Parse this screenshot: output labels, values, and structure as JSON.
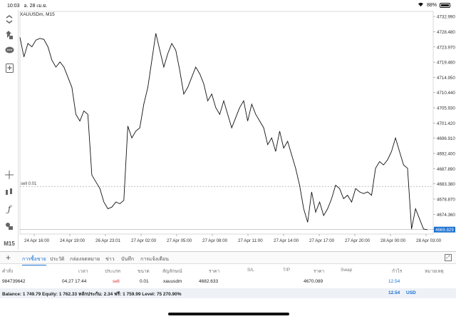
{
  "status": {
    "time": "10:03",
    "date": "อ. 28 เม.ย.",
    "battery": "88%"
  },
  "toolbar": {
    "bottom_label": "M15"
  },
  "symbol": {
    "label": "XAUUSDm, M15"
  },
  "chart_data": {
    "type": "line",
    "title": "XAUUSDm, M15",
    "x_tick_labels": [
      "24 Apr 16:00",
      "24 Apr 19:00",
      "26 Apr 23:01",
      "27 Apr 02:00",
      "27 Apr 05:00",
      "27 Apr 08:00",
      "27 Apr 11:00",
      "27 Apr 14:00",
      "27 Apr 17:00",
      "27 Apr 20:00",
      "28 Apr 00:00",
      "28 Apr 03:00"
    ],
    "y_tick_labels": [
      "4732.990",
      "4728.480",
      "4723.970",
      "4719.460",
      "4714.950",
      "4710.440",
      "4705.930",
      "4701.420",
      "4696.910",
      "4692.400",
      "4687.890",
      "4683.380",
      "4678.870",
      "4674.360",
      "4669.850"
    ],
    "ylim": [
      4668.5,
      4734.5
    ],
    "current_price": "4669.829",
    "sell_line": {
      "label": "sell 0.01",
      "price": 4682.633
    },
    "line_color": "#111111",
    "values": [
      4726.8,
      4721.0,
      4725.0,
      4724.0,
      4726.0,
      4726.5,
      4726.2,
      4724.0,
      4720.0,
      4718.0,
      4719.5,
      4718.0,
      4715.0,
      4712.0,
      4704.0,
      4702.0,
      4705.0,
      4704.0,
      4686.0,
      4684.0,
      4682.0,
      4678.0,
      4676.0,
      4676.5,
      4678.0,
      4677.5,
      4678.5,
      4700.5,
      4697.0,
      4699.0,
      4700.0,
      4707.0,
      4712.0,
      4720.0,
      4728.0,
      4723.0,
      4718.0,
      4722.0,
      4725.0,
      4723.0,
      4717.0,
      4710.0,
      4712.0,
      4715.0,
      4718.0,
      4716.0,
      4713.0,
      4708.0,
      4710.0,
      4706.0,
      4704.0,
      4708.0,
      4704.0,
      4700.0,
      4703.0,
      4706.0,
      4708.0,
      4702.0,
      4707.0,
      4704.0,
      4702.0,
      4700.0,
      4695.0,
      4697.0,
      4693.0,
      4699.0,
      4694.0,
      4696.0,
      4692.0,
      4688.0,
      4683.0,
      4676.0,
      4672.0,
      4681.0,
      4675.0,
      4678.0,
      4674.0,
      4676.0,
      4679.0,
      4683.0,
      4682.0,
      4679.0,
      4680.0,
      4678.0,
      4682.0,
      4681.0,
      4680.5,
      4681.0,
      4680.0,
      4688.0,
      4690.0,
      4689.0,
      4690.5,
      4693.0,
      4697.0,
      4693.0,
      4689.0,
      4688.0,
      4670.0,
      4676.0,
      4673.0,
      4670.0,
      4669.8
    ]
  },
  "tabs": {
    "plus": "+",
    "items": [
      "การซื้อขาย",
      "ประวัติ",
      "กล่องจดหมาย",
      "ข่าว",
      "บันทึก",
      "การแจ้งเตือน"
    ]
  },
  "table": {
    "headers": [
      "คำสั่ง",
      "เวลา",
      "ประเภท",
      "ขนาด",
      "สัญลักษณ์",
      "ราคา",
      "S/L",
      "T/P",
      "ราคา",
      "Swap",
      "กำไร",
      "หมายเหตุ"
    ],
    "row": {
      "order": "984739642",
      "time": "04.27 17:44",
      "type": "sell",
      "size": "0.01",
      "symbol": "xauusdm",
      "price": "4682.633",
      "price2": "4670.089",
      "profit": "12.54"
    }
  },
  "balance": {
    "text": "Balance: 1 749.79 Equity: 1 762.33 หลักประกัน: 2.34 ฟรี: 1 759.99 Level: 75 270.90%",
    "profit": "12.54",
    "currency": "USD"
  }
}
